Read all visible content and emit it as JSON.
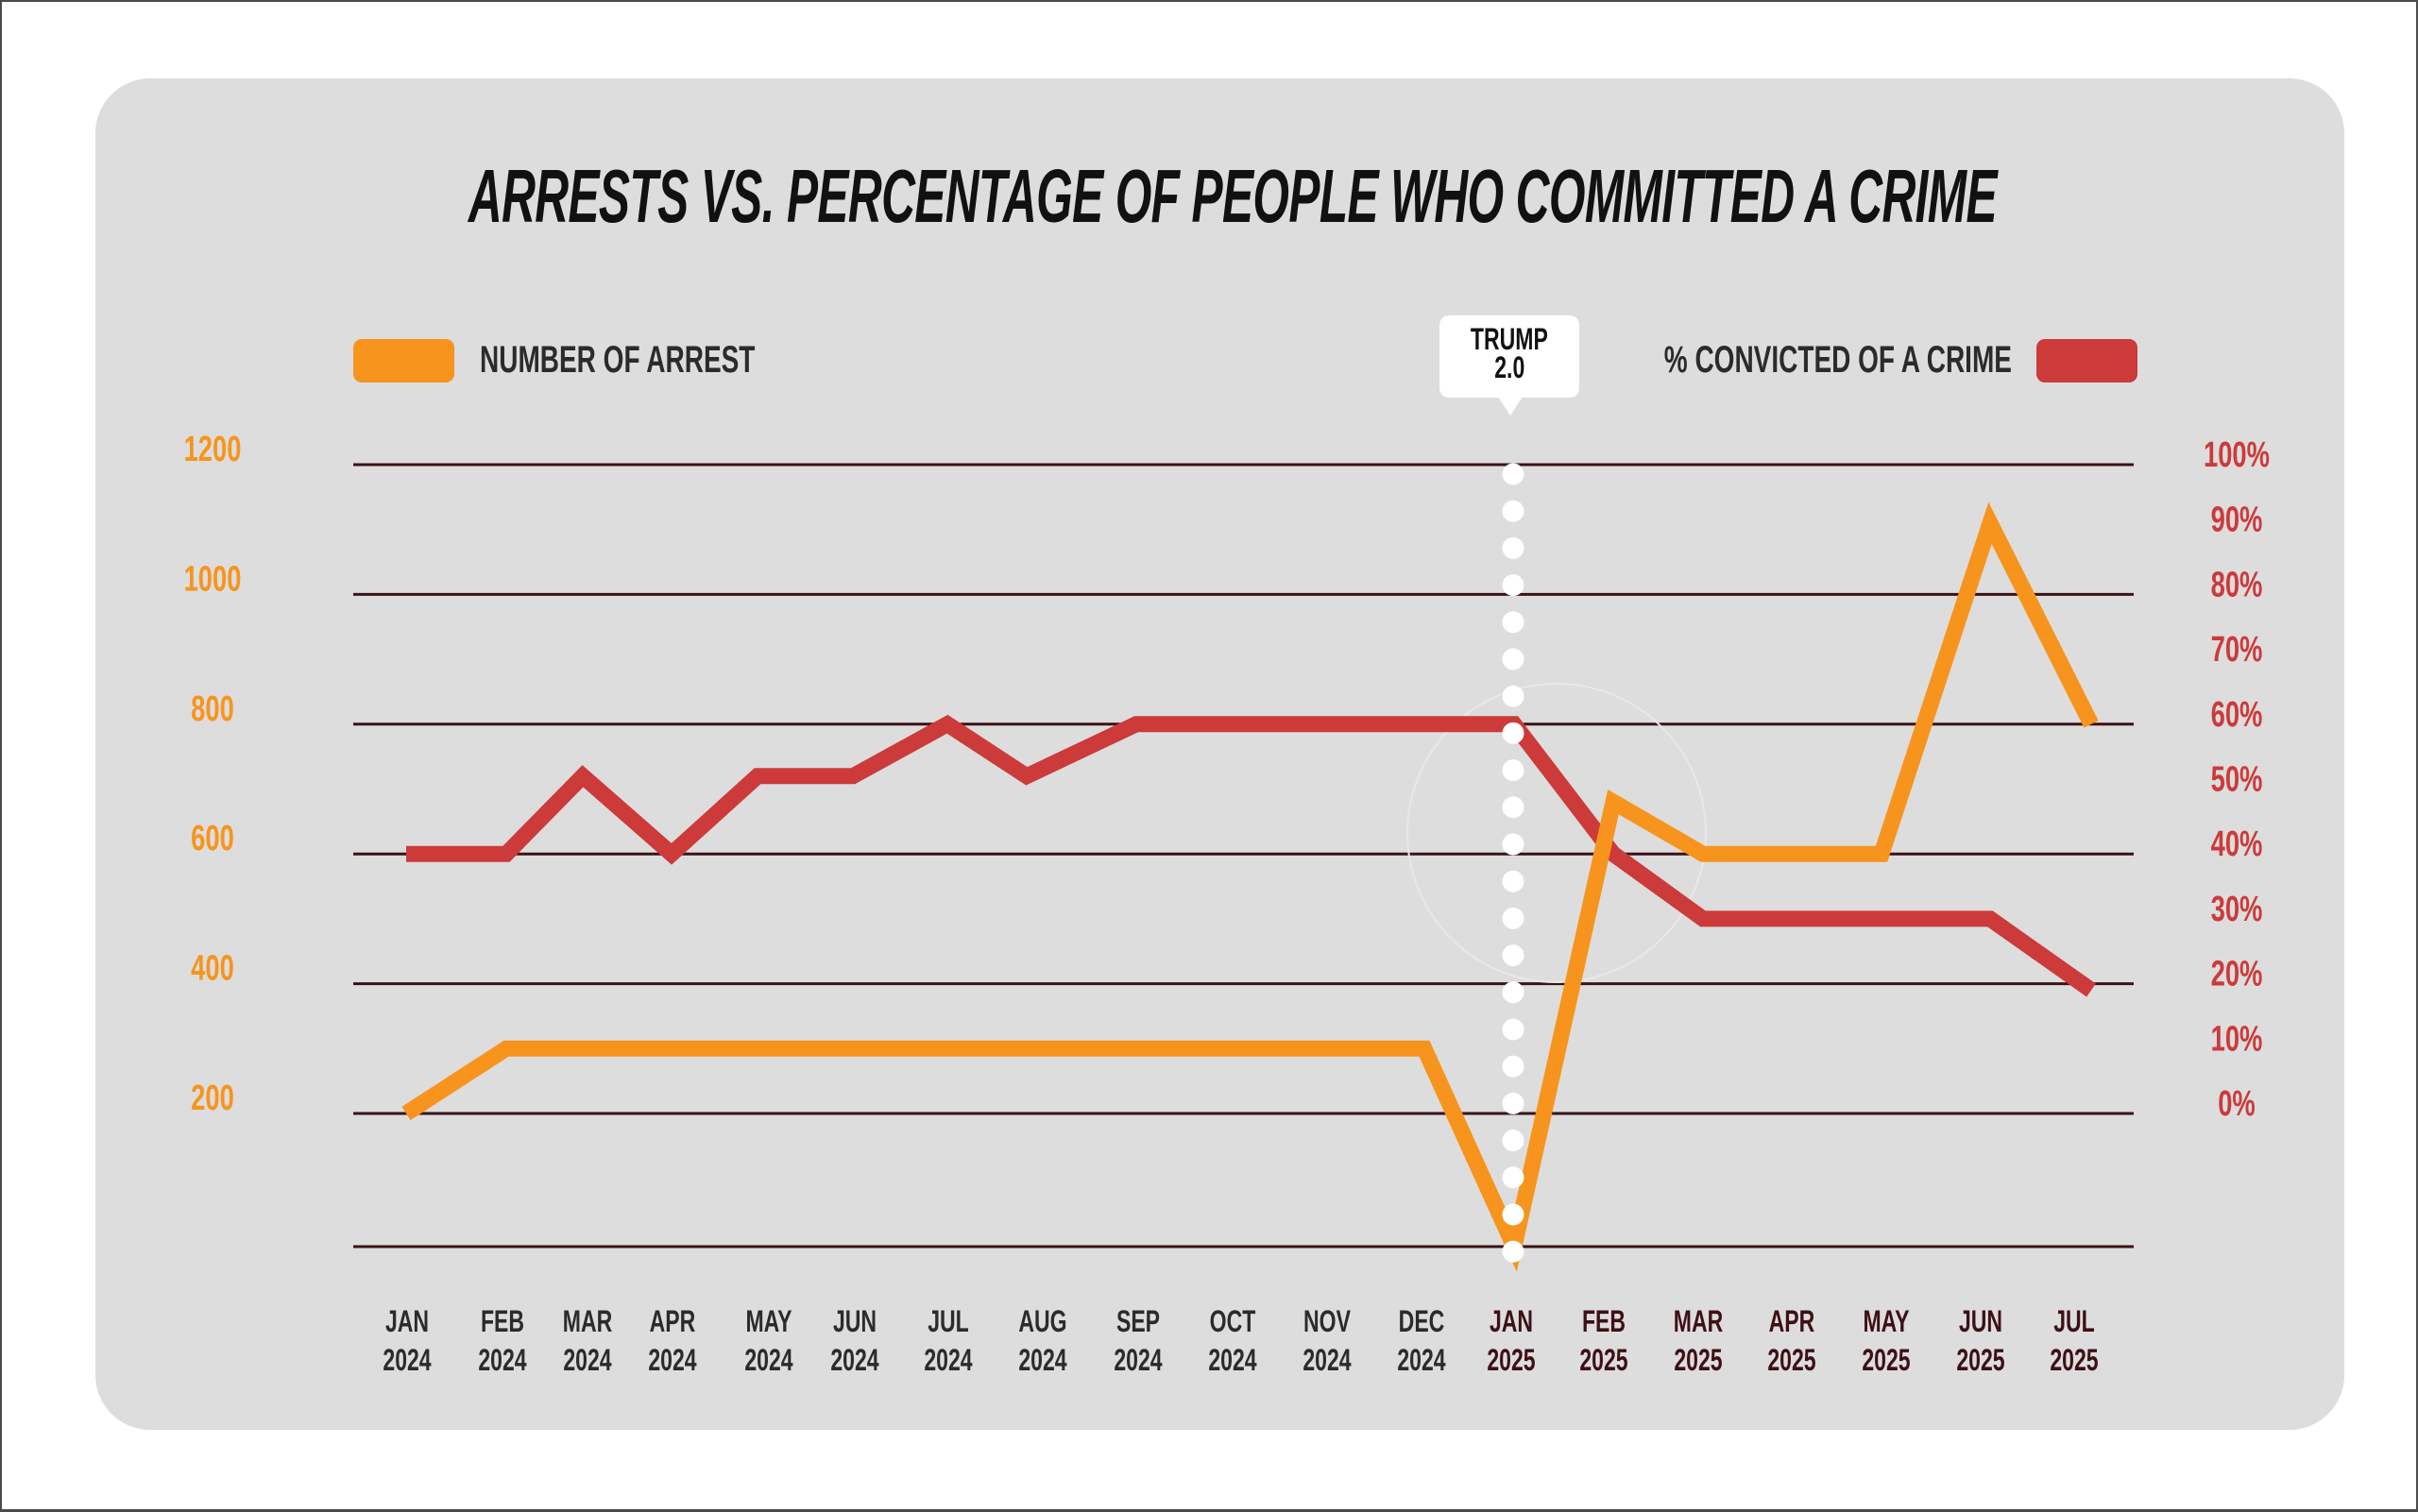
{
  "title": "ARRESTS VS. PERCENTAGE OF PEOPLE WHO COMMITTED A CRIME",
  "legend": {
    "arrests": {
      "label": "NUMBER OF ARREST",
      "color": "#f7941d"
    },
    "convicted": {
      "label": "% CONVICTED OF A CRIME",
      "color": "#cc3a3a"
    }
  },
  "annotation": {
    "line1": "TRUMP",
    "line2": "2.0",
    "at_category": "JAN 2025"
  },
  "colors": {
    "card_background": "#dddddd",
    "gridline": "#3a1217",
    "month_2024": "#2b2b2b",
    "month_2025": "#3d1016",
    "marker_dots": "#ffffff"
  },
  "chart_data": {
    "type": "line",
    "title": "ARRESTS VS. PERCENTAGE OF PEOPLE WHO COMMITTED A CRIME",
    "xlabel": "",
    "categories": [
      {
        "month": "JAN",
        "year": "2024"
      },
      {
        "month": "FEB",
        "year": "2024"
      },
      {
        "month": "MAR",
        "year": "2024"
      },
      {
        "month": "APR",
        "year": "2024"
      },
      {
        "month": "MAY",
        "year": "2024"
      },
      {
        "month": "JUN",
        "year": "2024"
      },
      {
        "month": "JUL",
        "year": "2024"
      },
      {
        "month": "AUG",
        "year": "2024"
      },
      {
        "month": "SEP",
        "year": "2024"
      },
      {
        "month": "OCT",
        "year": "2024"
      },
      {
        "month": "NOV",
        "year": "2024"
      },
      {
        "month": "DEC",
        "year": "2024"
      },
      {
        "month": "JAN",
        "year": "2025"
      },
      {
        "month": "FEB",
        "year": "2025"
      },
      {
        "month": "MAR",
        "year": "2025"
      },
      {
        "month": "APR",
        "year": "2025"
      },
      {
        "month": "MAY",
        "year": "2025"
      },
      {
        "month": "JUN",
        "year": "2025"
      },
      {
        "month": "JUL",
        "year": "2025"
      }
    ],
    "series": [
      {
        "name": "NUMBER OF ARREST",
        "axis": "left",
        "color": "#f7941d",
        "values": [
          200,
          300,
          300,
          300,
          300,
          300,
          300,
          300,
          300,
          300,
          300,
          300,
          0,
          680,
          600,
          600,
          600,
          1110,
          800
        ]
      },
      {
        "name": "% CONVICTED OF A CRIME",
        "axis": "right",
        "color": "#cc3a3a",
        "values": [
          40,
          40,
          52,
          40,
          52,
          52,
          60,
          52,
          60,
          60,
          60,
          60,
          60,
          40,
          30,
          30,
          30,
          30,
          19
        ]
      }
    ],
    "left_axis": {
      "ticks": [
        "1200",
        "1000",
        "800",
        "600",
        "400",
        "200"
      ],
      "tick_values": [
        1200,
        1000,
        800,
        600,
        400,
        200
      ],
      "range": [
        0,
        1200
      ]
    },
    "right_axis": {
      "ticks": [
        "100%",
        "90%",
        "80%",
        "70%",
        "60%",
        "50%",
        "40%",
        "30%",
        "20%",
        "10%",
        "0%"
      ],
      "tick_values": [
        100,
        90,
        80,
        70,
        60,
        50,
        40,
        30,
        20,
        10,
        0
      ],
      "range": [
        0,
        100
      ]
    },
    "gridlines_left_values": [
      1200,
      1000,
      800,
      600,
      400,
      200,
      0
    ],
    "grid": true,
    "legend_placement": "top"
  }
}
